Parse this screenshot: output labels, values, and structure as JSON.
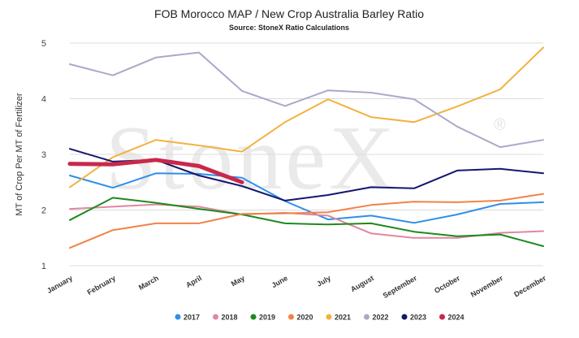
{
  "chart_data": {
    "type": "line",
    "title": "FOB Morocco MAP / New Crop Australia Barley Ratio",
    "subtitle": "Source: StoneX Ratio Calculations",
    "ylabel": "MT of Crop Per MT of Fertilizer",
    "xlabel": "",
    "watermark": "StoneX",
    "watermark_mark": "®",
    "ylim": [
      1,
      5
    ],
    "yticks": [
      1,
      2,
      3,
      4,
      5
    ],
    "grid": "horizontal",
    "legend_position": "bottom",
    "categories": [
      "January",
      "February",
      "March",
      "April",
      "May",
      "June",
      "July",
      "August",
      "September",
      "October",
      "November",
      "December"
    ],
    "series": [
      {
        "name": "2017",
        "color": "#2f8fe8",
        "values": [
          2.62,
          2.4,
          2.66,
          2.65,
          2.58,
          2.16,
          1.83,
          1.9,
          1.77,
          1.92,
          2.11,
          2.14
        ]
      },
      {
        "name": "2018",
        "color": "#e0879f",
        "values": [
          2.02,
          2.06,
          2.1,
          2.06,
          1.92,
          1.95,
          1.9,
          1.58,
          1.5,
          1.5,
          1.59,
          1.62
        ]
      },
      {
        "name": "2019",
        "color": "#1d8a1d",
        "values": [
          1.82,
          2.22,
          2.13,
          2.02,
          1.92,
          1.76,
          1.74,
          1.76,
          1.61,
          1.53,
          1.56,
          1.35
        ]
      },
      {
        "name": "2020",
        "color": "#f28248",
        "values": [
          1.32,
          1.64,
          1.76,
          1.76,
          1.93,
          1.94,
          1.96,
          2.09,
          2.15,
          2.14,
          2.17,
          2.29
        ]
      },
      {
        "name": "2021",
        "color": "#f2b240",
        "values": [
          2.41,
          2.95,
          3.26,
          3.16,
          3.05,
          3.58,
          3.99,
          3.67,
          3.58,
          3.86,
          4.17,
          4.92
        ]
      },
      {
        "name": "2022",
        "color": "#a9a9c8",
        "values": [
          4.62,
          4.42,
          4.74,
          4.83,
          4.14,
          3.87,
          4.15,
          4.11,
          3.99,
          3.5,
          3.13,
          3.26
        ]
      },
      {
        "name": "2023",
        "color": "#14176e",
        "values": [
          3.1,
          2.87,
          2.9,
          2.62,
          2.43,
          2.17,
          2.27,
          2.41,
          2.39,
          2.71,
          2.74,
          2.66
        ]
      },
      {
        "name": "2024",
        "color": "#c8284b",
        "values": [
          2.83,
          2.82,
          2.9,
          2.79,
          2.5,
          null,
          null,
          null,
          null,
          null,
          null,
          null
        ]
      }
    ]
  }
}
